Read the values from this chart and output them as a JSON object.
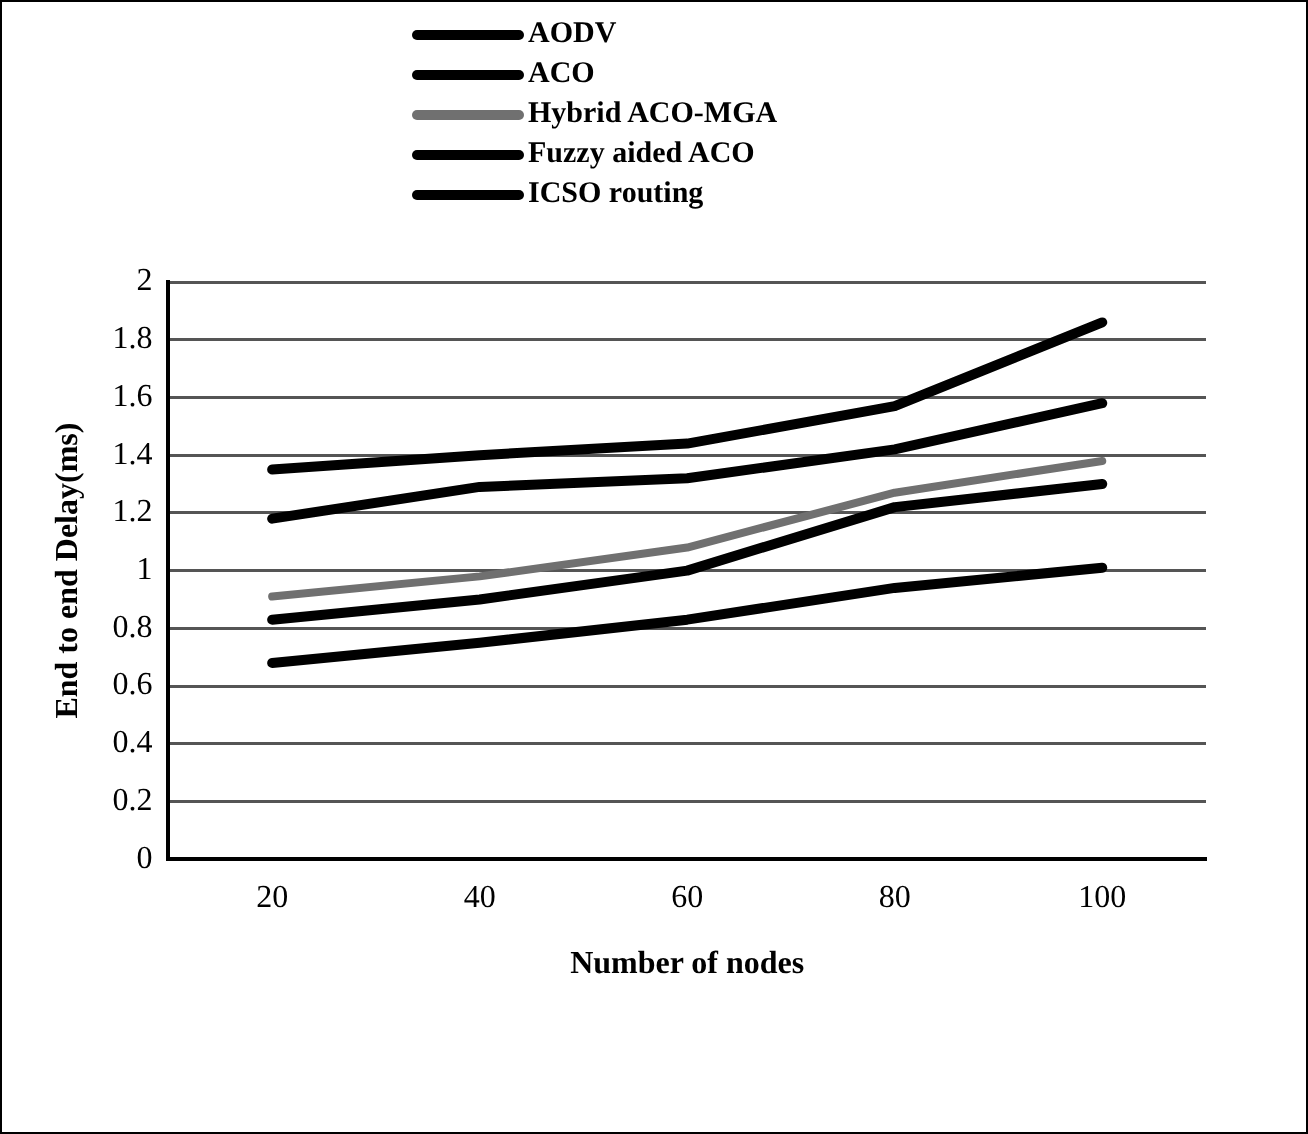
{
  "chart_data": {
    "type": "line",
    "xlabel": "Number of nodes",
    "ylabel": "End to end Delay(ms)",
    "categories": [
      "20",
      "40",
      "60",
      "80",
      "100"
    ],
    "series": [
      {
        "name": "AODV",
        "color": "#000000",
        "values": [
          1.35,
          1.4,
          1.44,
          1.57,
          1.86
        ]
      },
      {
        "name": "ACO",
        "color": "#000000",
        "values": [
          1.18,
          1.29,
          1.32,
          1.42,
          1.58
        ]
      },
      {
        "name": "Hybrid ACO-MGA",
        "color": "#707070",
        "values": [
          0.91,
          0.98,
          1.08,
          1.27,
          1.38
        ]
      },
      {
        "name": "Fuzzy aided ACO",
        "color": "#000000",
        "values": [
          0.83,
          0.9,
          1.0,
          1.22,
          1.3
        ]
      },
      {
        "name": "ICSO routing",
        "color": "#000000",
        "values": [
          0.68,
          0.75,
          0.83,
          0.94,
          1.01
        ]
      }
    ],
    "ylim": [
      0,
      2
    ],
    "yticks": [
      0,
      0.2,
      0.4,
      0.6,
      0.8,
      1,
      1.2,
      1.4,
      1.6,
      1.8,
      2
    ],
    "grid": "y",
    "legend": "top",
    "marker": "none",
    "line_style": "solid"
  }
}
